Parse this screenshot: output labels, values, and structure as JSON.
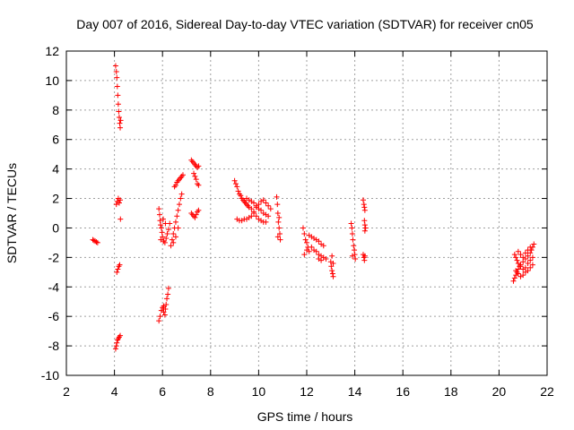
{
  "chart_data": {
    "type": "scatter",
    "title": "Day 007 of 2016, Sidereal Day-to-day VTEC variation (SDTVAR) for receiver cn05",
    "xlabel": "GPS time / hours",
    "ylabel": "SDTVAR / TECUs",
    "xlim": [
      2,
      22
    ],
    "ylim": [
      -10,
      12
    ],
    "xticks": [
      2,
      4,
      6,
      8,
      10,
      12,
      14,
      16,
      18,
      20,
      22
    ],
    "yticks": [
      -10,
      -8,
      -6,
      -4,
      -2,
      0,
      2,
      4,
      6,
      8,
      10,
      12
    ],
    "grid": true,
    "marker": "+",
    "color": "#ff0000",
    "series": [
      {
        "name": "SDTVAR",
        "points": [
          [
            3.1,
            -0.8
          ],
          [
            3.15,
            -0.85
          ],
          [
            3.2,
            -0.9
          ],
          [
            3.25,
            -0.95
          ],
          [
            3.3,
            -1.0
          ],
          [
            4.05,
            11.0
          ],
          [
            4.08,
            10.6
          ],
          [
            4.1,
            10.2
          ],
          [
            4.12,
            9.6
          ],
          [
            4.14,
            9.0
          ],
          [
            4.16,
            8.4
          ],
          [
            4.18,
            7.9
          ],
          [
            4.2,
            7.5
          ],
          [
            4.22,
            7.1
          ],
          [
            4.24,
            6.8
          ],
          [
            4.26,
            7.3
          ],
          [
            4.08,
            1.6
          ],
          [
            4.12,
            1.8
          ],
          [
            4.16,
            2.0
          ],
          [
            4.2,
            1.7
          ],
          [
            4.24,
            1.9
          ],
          [
            4.25,
            0.6
          ],
          [
            4.1,
            -3.0
          ],
          [
            4.14,
            -2.8
          ],
          [
            4.18,
            -2.6
          ],
          [
            4.22,
            -2.5
          ],
          [
            4.05,
            -8.2
          ],
          [
            4.08,
            -8.0
          ],
          [
            4.1,
            -7.8
          ],
          [
            4.13,
            -7.6
          ],
          [
            4.16,
            -7.5
          ],
          [
            4.2,
            -7.4
          ],
          [
            4.24,
            -7.3
          ],
          [
            5.85,
            -6.3
          ],
          [
            5.9,
            -6.0
          ],
          [
            5.95,
            -5.6
          ],
          [
            6.0,
            -5.4
          ],
          [
            6.05,
            -5.7
          ],
          [
            6.1,
            -5.9
          ],
          [
            6.15,
            -5.2
          ],
          [
            6.18,
            -4.8
          ],
          [
            6.22,
            -4.5
          ],
          [
            6.25,
            -4.1
          ],
          [
            6.05,
            -5.3
          ],
          [
            6.12,
            -5.5
          ],
          [
            5.85,
            1.3
          ],
          [
            5.88,
            0.9
          ],
          [
            5.9,
            0.5
          ],
          [
            5.92,
            0.2
          ],
          [
            5.95,
            0.0
          ],
          [
            5.98,
            -0.3
          ],
          [
            6.0,
            -0.6
          ],
          [
            6.05,
            -0.9
          ],
          [
            6.1,
            -1.0
          ],
          [
            6.15,
            -0.7
          ],
          [
            6.2,
            -0.4
          ],
          [
            6.25,
            -0.1
          ],
          [
            6.3,
            0.3
          ],
          [
            5.93,
            -0.8
          ],
          [
            6.03,
            0.6
          ],
          [
            6.12,
            0.3
          ],
          [
            6.35,
            -1.2
          ],
          [
            6.4,
            -0.8
          ],
          [
            6.45,
            -0.4
          ],
          [
            6.5,
            0.0
          ],
          [
            6.55,
            0.4
          ],
          [
            6.6,
            0.8
          ],
          [
            6.65,
            1.2
          ],
          [
            6.7,
            1.6
          ],
          [
            6.75,
            2.0
          ],
          [
            6.8,
            2.3
          ],
          [
            6.45,
            -1.0
          ],
          [
            6.55,
            -0.6
          ],
          [
            6.65,
            0.0
          ],
          [
            6.5,
            2.8
          ],
          [
            6.55,
            2.9
          ],
          [
            6.6,
            3.1
          ],
          [
            6.65,
            3.2
          ],
          [
            6.7,
            3.3
          ],
          [
            6.75,
            3.4
          ],
          [
            6.8,
            3.5
          ],
          [
            6.85,
            3.6
          ],
          [
            7.2,
            4.6
          ],
          [
            7.25,
            4.5
          ],
          [
            7.3,
            4.4
          ],
          [
            7.35,
            4.3
          ],
          [
            7.4,
            4.2
          ],
          [
            7.45,
            4.1
          ],
          [
            7.5,
            4.2
          ],
          [
            7.3,
            3.7
          ],
          [
            7.35,
            3.5
          ],
          [
            7.4,
            3.3
          ],
          [
            7.45,
            3.0
          ],
          [
            7.5,
            2.9
          ],
          [
            7.2,
            1.0
          ],
          [
            7.25,
            0.9
          ],
          [
            7.3,
            0.8
          ],
          [
            7.35,
            0.7
          ],
          [
            7.4,
            0.9
          ],
          [
            7.45,
            1.1
          ],
          [
            7.5,
            1.2
          ],
          [
            9.0,
            3.2
          ],
          [
            9.05,
            3.0
          ],
          [
            9.1,
            2.8
          ],
          [
            9.15,
            2.5
          ],
          [
            9.2,
            2.3
          ],
          [
            9.25,
            2.2
          ],
          [
            9.3,
            2.0
          ],
          [
            9.35,
            1.9
          ],
          [
            9.4,
            1.8
          ],
          [
            9.45,
            1.7
          ],
          [
            9.5,
            1.6
          ],
          [
            9.55,
            1.5
          ],
          [
            9.6,
            1.4
          ],
          [
            9.7,
            1.3
          ],
          [
            9.8,
            1.0
          ],
          [
            9.9,
            0.8
          ],
          [
            10.0,
            0.6
          ],
          [
            10.1,
            0.5
          ],
          [
            10.2,
            0.4
          ],
          [
            10.3,
            0.4
          ],
          [
            9.1,
            0.6
          ],
          [
            9.2,
            0.5
          ],
          [
            9.3,
            0.5
          ],
          [
            9.4,
            0.6
          ],
          [
            9.5,
            0.6
          ],
          [
            9.6,
            0.7
          ],
          [
            9.7,
            0.8
          ],
          [
            9.8,
            1.1
          ],
          [
            9.9,
            1.4
          ],
          [
            10.0,
            1.6
          ],
          [
            10.1,
            1.8
          ],
          [
            10.2,
            1.9
          ],
          [
            10.3,
            1.7
          ],
          [
            10.4,
            1.5
          ],
          [
            10.5,
            1.3
          ],
          [
            9.5,
            2.0
          ],
          [
            9.6,
            1.9
          ],
          [
            9.7,
            1.8
          ],
          [
            9.8,
            1.7
          ],
          [
            9.9,
            1.5
          ],
          [
            10.0,
            1.3
          ],
          [
            10.1,
            1.2
          ],
          [
            10.2,
            1.0
          ],
          [
            10.3,
            0.9
          ],
          [
            10.4,
            0.8
          ],
          [
            10.75,
            2.1
          ],
          [
            10.78,
            1.6
          ],
          [
            10.8,
            1.0
          ],
          [
            10.82,
            0.4
          ],
          [
            10.85,
            0.0
          ],
          [
            10.88,
            -0.4
          ],
          [
            10.9,
            -0.8
          ],
          [
            10.8,
            -0.6
          ],
          [
            10.85,
            0.7
          ],
          [
            11.85,
            0.0
          ],
          [
            11.9,
            -0.4
          ],
          [
            11.95,
            -0.8
          ],
          [
            12.0,
            -1.0
          ],
          [
            12.05,
            -1.3
          ],
          [
            12.1,
            -1.6
          ],
          [
            11.9,
            -1.8
          ],
          [
            12.0,
            -1.5
          ],
          [
            12.1,
            -0.5
          ],
          [
            12.2,
            -0.6
          ],
          [
            12.3,
            -0.7
          ],
          [
            12.4,
            -0.8
          ],
          [
            12.5,
            -0.9
          ],
          [
            12.6,
            -1.1
          ],
          [
            12.7,
            -1.2
          ],
          [
            12.2,
            -1.3
          ],
          [
            12.3,
            -1.5
          ],
          [
            12.4,
            -1.6
          ],
          [
            12.5,
            -1.8
          ],
          [
            12.6,
            -1.9
          ],
          [
            12.7,
            -2.0
          ],
          [
            12.8,
            -2.1
          ],
          [
            12.5,
            -2.1
          ],
          [
            12.6,
            -2.2
          ],
          [
            13.0,
            -2.3
          ],
          [
            13.02,
            -2.6
          ],
          [
            13.05,
            -2.9
          ],
          [
            13.08,
            -3.1
          ],
          [
            13.1,
            -3.3
          ],
          [
            13.05,
            -1.9
          ],
          [
            13.1,
            -2.4
          ],
          [
            13.85,
            0.3
          ],
          [
            13.88,
            0.0
          ],
          [
            13.9,
            -0.4
          ],
          [
            13.92,
            -0.8
          ],
          [
            13.95,
            -1.2
          ],
          [
            13.98,
            -1.5
          ],
          [
            14.0,
            -1.8
          ],
          [
            14.02,
            -2.1
          ],
          [
            13.9,
            -1.9
          ],
          [
            14.35,
            1.9
          ],
          [
            14.38,
            1.6
          ],
          [
            14.4,
            1.4
          ],
          [
            14.42,
            1.2
          ],
          [
            14.4,
            0.5
          ],
          [
            14.42,
            0.2
          ],
          [
            14.45,
            0.0
          ],
          [
            14.42,
            -0.2
          ],
          [
            14.35,
            -1.8
          ],
          [
            14.38,
            -2.0
          ],
          [
            14.4,
            -2.2
          ],
          [
            14.42,
            -1.9
          ],
          [
            20.6,
            -3.6
          ],
          [
            20.65,
            -3.4
          ],
          [
            20.7,
            -3.2
          ],
          [
            20.75,
            -3.0
          ],
          [
            20.8,
            -2.8
          ],
          [
            20.85,
            -2.6
          ],
          [
            20.9,
            -2.5
          ],
          [
            21.0,
            -2.3
          ],
          [
            21.1,
            -2.1
          ],
          [
            21.2,
            -1.9
          ],
          [
            21.3,
            -1.7
          ],
          [
            21.35,
            -1.5
          ],
          [
            21.4,
            -1.3
          ],
          [
            21.45,
            -1.1
          ],
          [
            20.65,
            -1.8
          ],
          [
            20.7,
            -2.0
          ],
          [
            20.75,
            -2.2
          ],
          [
            20.8,
            -2.4
          ],
          [
            20.9,
            -2.6
          ],
          [
            21.0,
            -2.8
          ],
          [
            21.1,
            -3.0
          ],
          [
            21.2,
            -2.9
          ],
          [
            21.3,
            -2.7
          ],
          [
            21.4,
            -2.5
          ],
          [
            20.7,
            -2.9
          ],
          [
            20.8,
            -3.1
          ],
          [
            20.9,
            -3.3
          ],
          [
            21.0,
            -3.2
          ],
          [
            21.1,
            -2.7
          ],
          [
            21.2,
            -2.4
          ],
          [
            21.3,
            -2.2
          ],
          [
            21.4,
            -2.0
          ],
          [
            20.8,
            -1.6
          ],
          [
            20.9,
            -1.8
          ],
          [
            21.0,
            -2.0
          ],
          [
            21.1,
            -1.7
          ],
          [
            21.2,
            -1.5
          ],
          [
            21.3,
            -1.3
          ]
        ]
      }
    ]
  }
}
